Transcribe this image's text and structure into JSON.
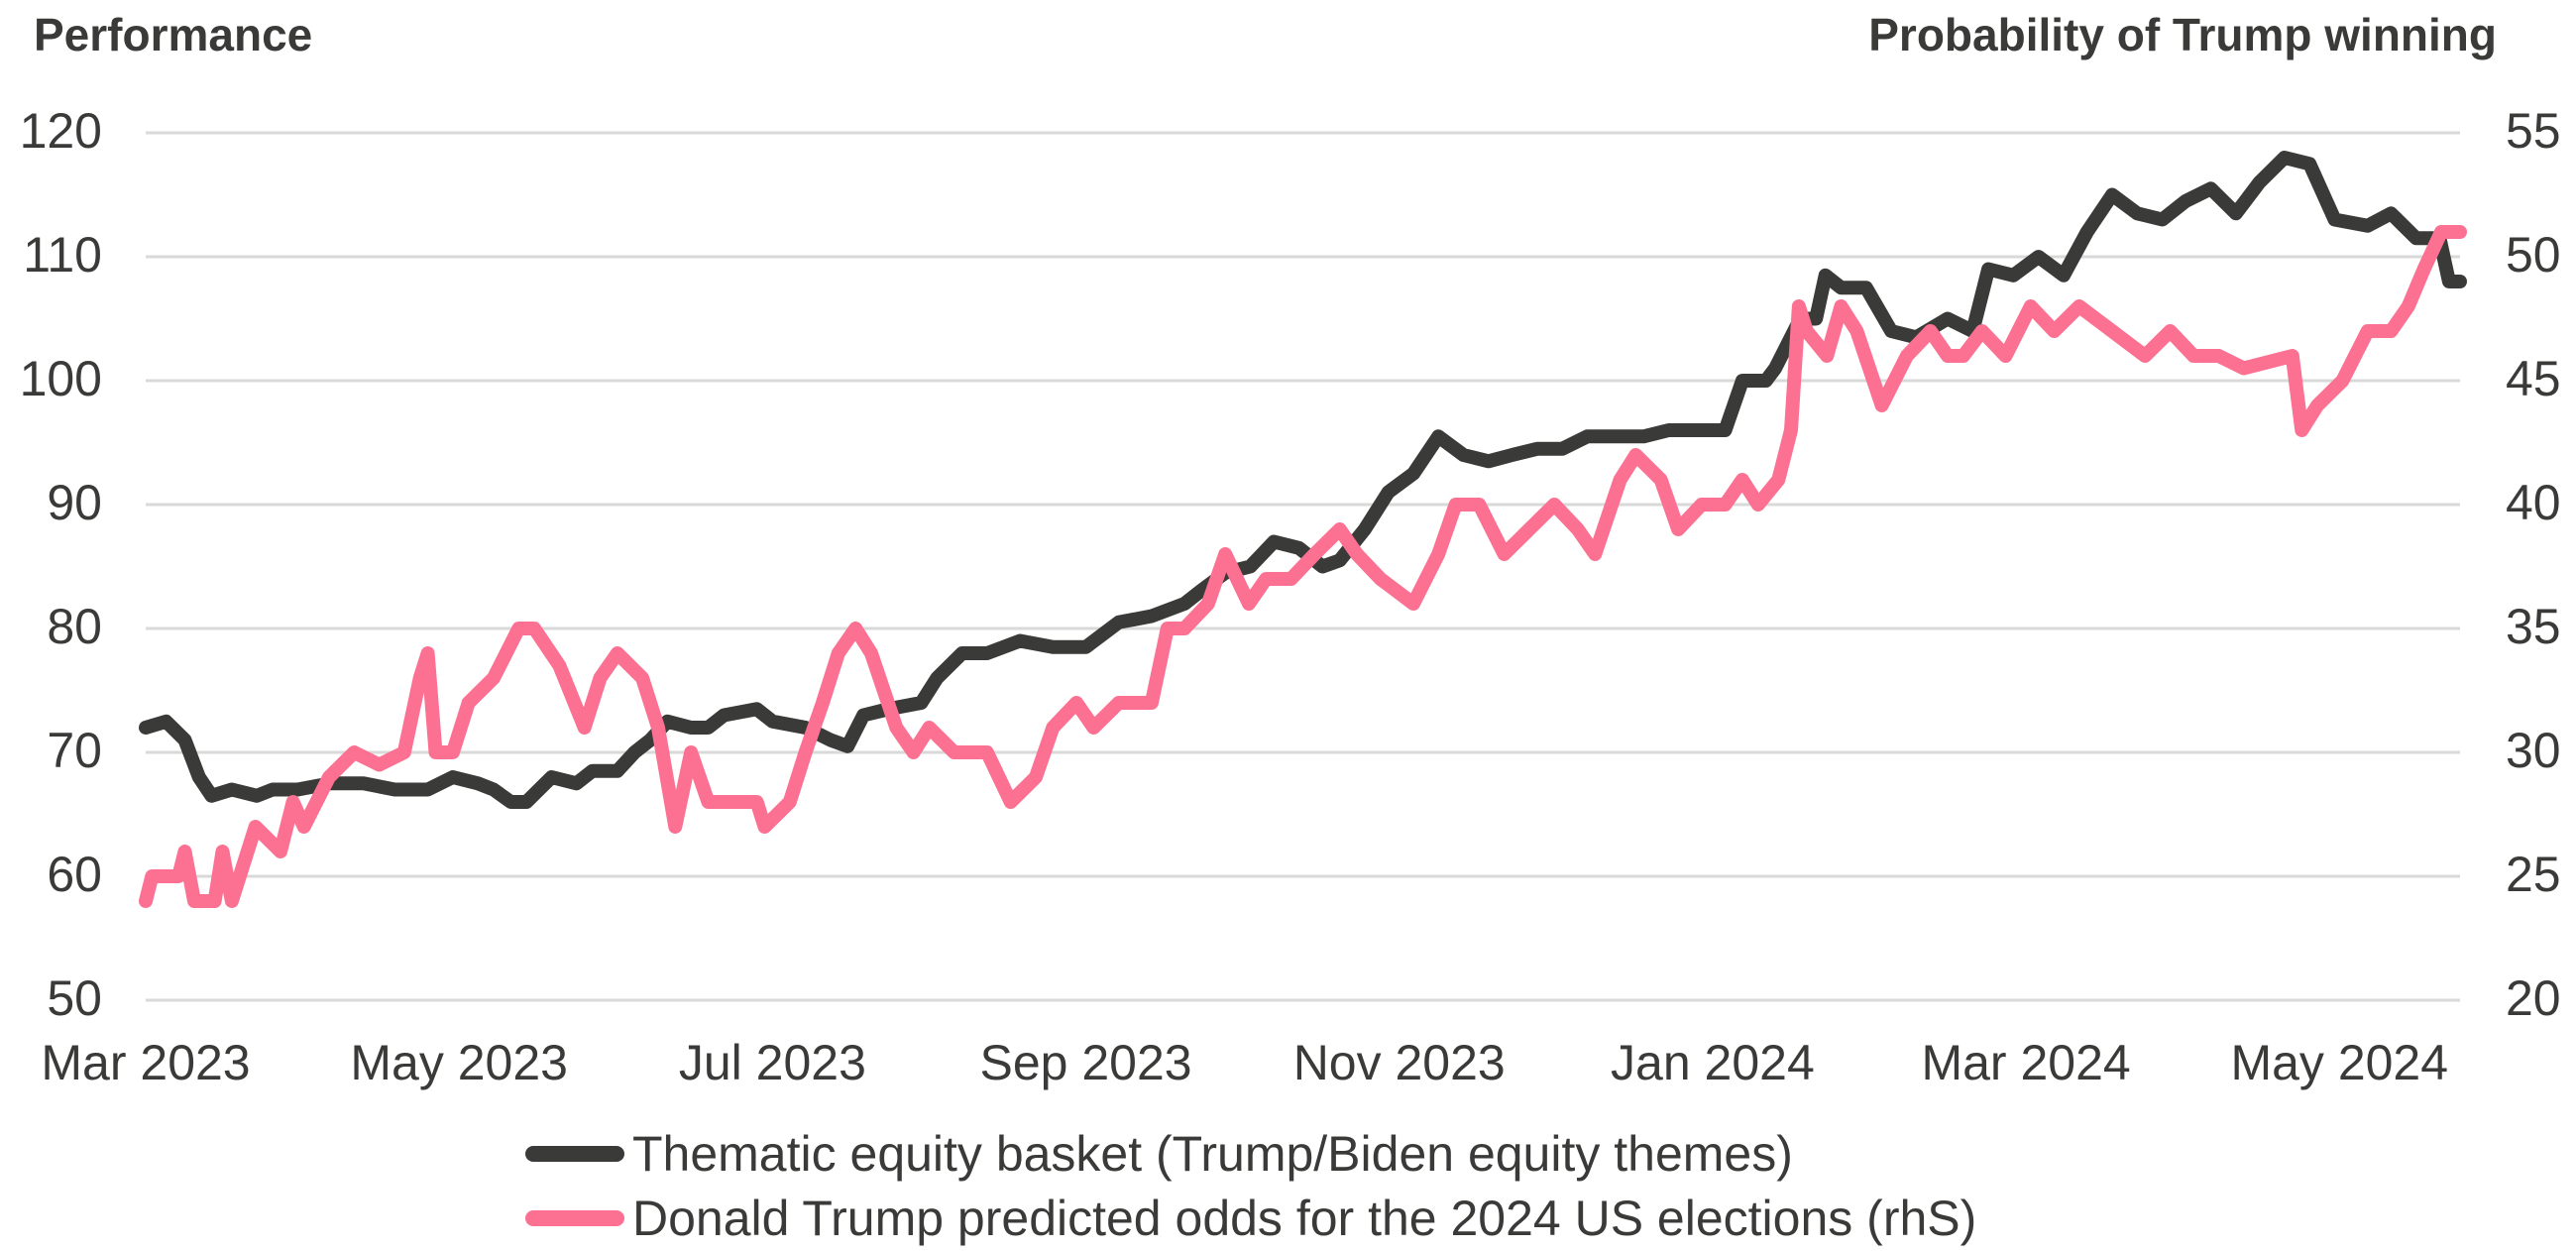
{
  "chart_data": {
    "type": "line",
    "title": "",
    "left_axis": {
      "label": "Performance",
      "range": [
        50,
        120
      ],
      "ticks": [
        50,
        60,
        70,
        80,
        90,
        100,
        110,
        120
      ]
    },
    "right_axis": {
      "label": "Probability of Trump winning",
      "range": [
        20,
        55
      ],
      "ticks": [
        20,
        25,
        30,
        35,
        40,
        45,
        50,
        55
      ]
    },
    "x_axis": {
      "ticks": [
        "Mar 2023",
        "May 2023",
        "Jul 2023",
        "Sep 2023",
        "Nov 2023",
        "Jan 2024",
        "Mar 2024",
        "May 2024"
      ],
      "tick_months": [
        0,
        2,
        4,
        6,
        8,
        10,
        12,
        14
      ],
      "range_months": [
        0,
        14.77
      ]
    },
    "grid": true,
    "legend_position": "bottom",
    "series": [
      {
        "name": "Thematic equity basket (Trump/Biden equity themes)",
        "axis": "left",
        "color": "#3a3b38",
        "x_months": [
          0,
          0.13,
          0.25,
          0.34,
          0.42,
          0.55,
          0.71,
          0.81,
          0.97,
          1.18,
          1.39,
          1.59,
          1.8,
          1.96,
          2.12,
          2.22,
          2.33,
          2.43,
          2.59,
          2.75,
          2.85,
          3.01,
          3.12,
          3.22,
          3.33,
          3.48,
          3.59,
          3.69,
          3.9,
          4.0,
          4.21,
          4.37,
          4.48,
          4.58,
          4.74,
          4.95,
          5.05,
          5.21,
          5.37,
          5.58,
          5.79,
          6.0,
          6.21,
          6.42,
          6.63,
          6.73,
          6.89,
          7.05,
          7.2,
          7.36,
          7.51,
          7.62,
          7.78,
          7.93,
          8.09,
          8.25,
          8.41,
          8.57,
          8.72,
          8.88,
          9.04,
          9.2,
          9.4,
          9.56,
          9.72,
          9.93,
          10.08,
          10.19,
          10.34,
          10.4,
          10.56,
          10.66,
          10.72,
          10.82,
          10.98,
          11.14,
          11.3,
          11.5,
          11.66,
          11.76,
          11.92,
          12.08,
          12.24,
          12.39,
          12.55,
          12.71,
          12.87,
          13.02,
          13.18,
          13.34,
          13.49,
          13.65,
          13.81,
          13.97,
          14.18,
          14.33,
          14.49,
          14.64,
          14.7,
          14.77
        ],
        "values": [
          72,
          72.5,
          71,
          68,
          66.5,
          67,
          66.5,
          67,
          67,
          67.5,
          67.5,
          67,
          67,
          68,
          67.5,
          67,
          66,
          66,
          68,
          67.5,
          68.5,
          68.5,
          70,
          71,
          72.5,
          72,
          72,
          73,
          73.5,
          72.5,
          72,
          71,
          70.5,
          73,
          73.5,
          74,
          76,
          78,
          78,
          79,
          78.5,
          78.5,
          80.5,
          81,
          82,
          83,
          84.5,
          85,
          87,
          86.5,
          85,
          85.5,
          88,
          91,
          92.5,
          95.5,
          94,
          93.5,
          94,
          94.5,
          94.5,
          95.5,
          95.5,
          95.5,
          96,
          96,
          96,
          100,
          100,
          101,
          105,
          105,
          108.5,
          107.5,
          107.5,
          104,
          103.5,
          105,
          104,
          109,
          108.5,
          110,
          108.5,
          112,
          115,
          113.5,
          113,
          114.5,
          115.5,
          113.5,
          116,
          118,
          117.5,
          113,
          112.5,
          113.5,
          111.5,
          111.5,
          108,
          108
        ]
      },
      {
        "name": "Donald Trump predicted odds for the 2024 US elections (rhS)",
        "axis": "right",
        "color": "#fc7192",
        "x_months": [
          0,
          0.04,
          0.21,
          0.25,
          0.31,
          0.44,
          0.49,
          0.55,
          0.7,
          0.86,
          0.94,
          1.01,
          1.17,
          1.33,
          1.49,
          1.65,
          1.75,
          1.8,
          1.85,
          1.96,
          2.06,
          2.22,
          2.38,
          2.48,
          2.64,
          2.8,
          2.9,
          3.01,
          3.17,
          3.27,
          3.38,
          3.48,
          3.59,
          3.74,
          3.9,
          3.95,
          4.11,
          4.21,
          4.32,
          4.42,
          4.53,
          4.63,
          4.79,
          4.9,
          5.0,
          5.16,
          5.37,
          5.52,
          5.68,
          5.79,
          5.94,
          6.05,
          6.21,
          6.42,
          6.52,
          6.63,
          6.78,
          6.89,
          7.04,
          7.15,
          7.31,
          7.46,
          7.62,
          7.73,
          7.88,
          8.09,
          8.25,
          8.36,
          8.51,
          8.67,
          8.83,
          8.99,
          9.14,
          9.25,
          9.41,
          9.51,
          9.67,
          9.78,
          9.93,
          10.08,
          10.19,
          10.29,
          10.42,
          10.5,
          10.55,
          10.6,
          10.73,
          10.82,
          10.92,
          11.08,
          11.24,
          11.39,
          11.5,
          11.6,
          11.72,
          11.87,
          12.03,
          12.18,
          12.34,
          12.55,
          12.76,
          12.92,
          13.07,
          13.23,
          13.39,
          13.7,
          13.76,
          13.86,
          14.02,
          14.18,
          14.33,
          14.44,
          14.54,
          14.65,
          14.77
        ],
        "values": [
          24,
          25,
          25,
          26,
          24,
          24,
          26,
          24,
          27,
          26,
          28,
          27,
          29,
          30,
          29.5,
          30,
          33,
          34,
          30,
          30,
          32,
          33,
          35,
          35,
          33.5,
          31,
          33,
          34,
          33,
          31,
          27,
          30,
          28,
          28,
          28,
          27,
          28,
          30,
          32,
          34,
          35,
          34,
          31,
          30,
          31,
          30,
          30,
          28,
          29,
          31,
          32,
          31,
          32,
          32,
          35,
          35,
          36,
          38,
          36,
          37,
          37,
          38,
          39,
          38,
          37,
          36,
          38,
          40,
          40,
          38,
          39,
          40,
          39,
          38,
          41,
          42,
          41,
          39,
          40,
          40,
          41,
          40,
          41,
          43,
          48,
          47,
          46,
          48,
          47,
          44,
          46,
          47,
          46,
          46,
          47,
          46,
          48,
          47,
          48,
          47,
          46,
          47,
          46,
          46,
          45.5,
          46,
          43,
          44,
          45,
          47,
          47,
          48,
          49.5,
          51,
          51
        ]
      }
    ]
  },
  "axis_titles": {
    "left": "Performance",
    "right": "Probability of Trump winning"
  },
  "legend": {
    "items": [
      {
        "label": "Thematic equity basket (Trump/Biden equity themes)",
        "color": "#3a3b38"
      },
      {
        "label": "Donald Trump predicted odds for the 2024 US elections (rhS)",
        "color": "#fc7192"
      }
    ]
  }
}
